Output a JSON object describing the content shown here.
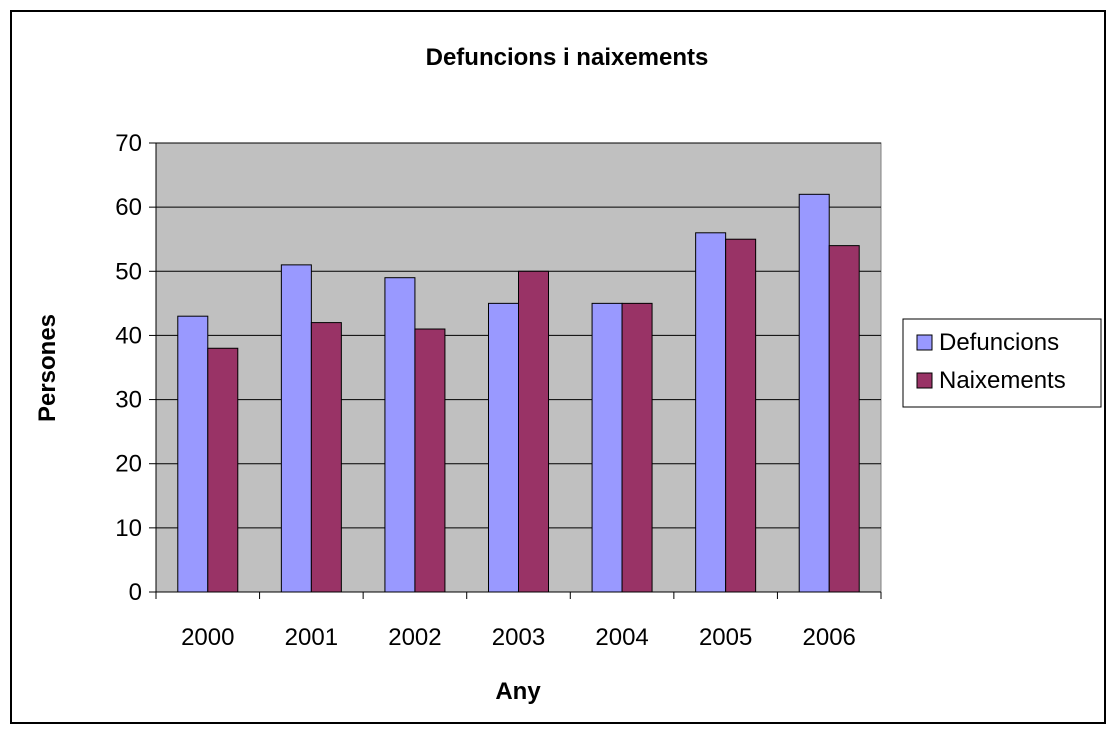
{
  "chart_data": {
    "type": "bar",
    "title": "Defuncions i naixements",
    "xlabel": "Any",
    "ylabel": "Persones",
    "categories": [
      "2000",
      "2001",
      "2002",
      "2003",
      "2004",
      "2005",
      "2006"
    ],
    "series": [
      {
        "name": "Defuncions",
        "values": [
          43,
          51,
          49,
          45,
          45,
          56,
          62
        ],
        "color": "#9999ff"
      },
      {
        "name": "Naixements",
        "values": [
          38,
          42,
          41,
          50,
          45,
          55,
          54
        ],
        "color": "#993366"
      }
    ],
    "ylim": [
      0,
      70
    ],
    "yticks": [
      "0",
      "10",
      "20",
      "30",
      "40",
      "50",
      "60",
      "70"
    ],
    "grid": true,
    "plot_background": "#c0c0c0",
    "legend_position": "right"
  }
}
